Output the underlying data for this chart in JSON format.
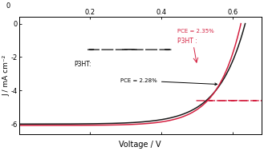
{
  "xlabel": "Voltage / V",
  "ylabel": "J / mA cm⁻²",
  "xlim": [
    0.0,
    0.68
  ],
  "ylim": [
    -6.6,
    0.4
  ],
  "xticks_top": [
    0.2,
    0.4,
    0.6
  ],
  "yticks": [
    0,
    -2,
    -4,
    -6
  ],
  "curve_black_color": "#1a1a1a",
  "curve_red_color": "#d42040",
  "annotation_black": "PCE = 2.28%",
  "annotation_red": "PCE = 2.35%",
  "label_black": "P3HT:",
  "label_red": "P3HT :",
  "bg_color": "#ffffff",
  "voc_black": 0.635,
  "jsc_black": -6.0,
  "n_black": 2.9,
  "voc_red": 0.623,
  "jsc_red": -6.08,
  "n_red": 2.55
}
